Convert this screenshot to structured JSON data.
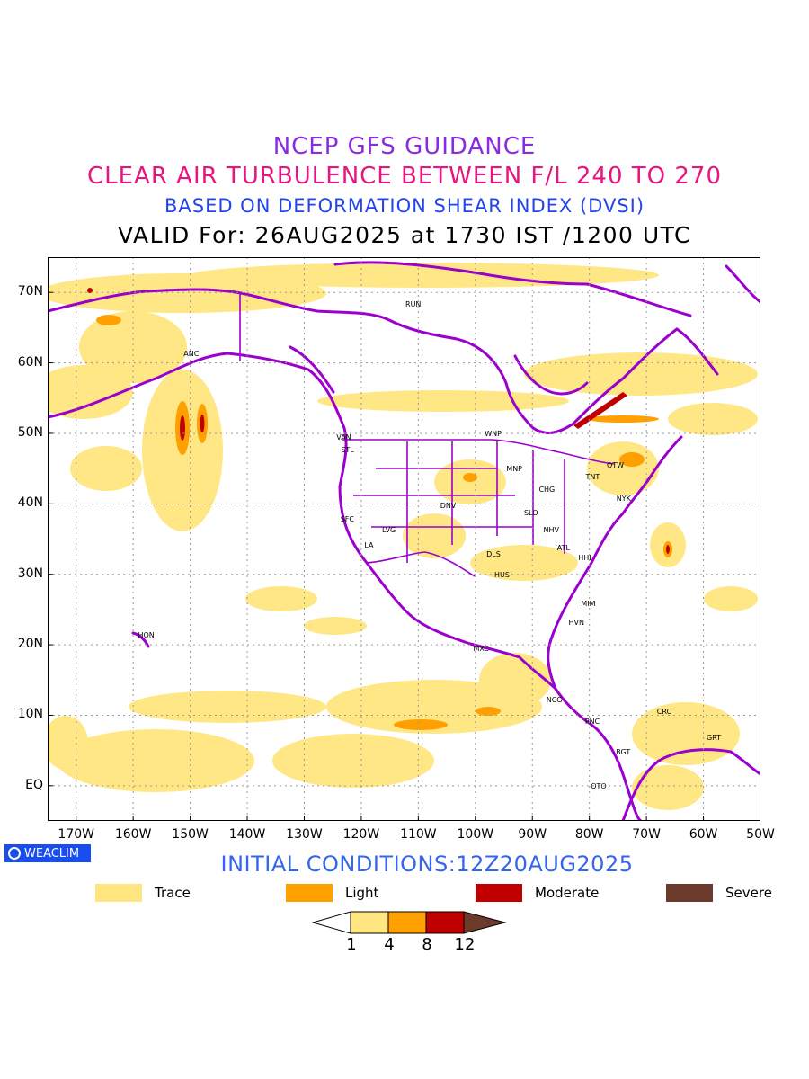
{
  "header": {
    "line1": "NCEP GFS GUIDANCE",
    "line2": "CLEAR AIR TURBULENCE BETWEEN F/L 240 TO 270",
    "line3": "BASED ON DEFORMATION SHEAR INDEX (DVSI)",
    "line4": "VALID For: 26AUG2025 at 1730 IST /1200 UTC"
  },
  "axes": {
    "x_labels": [
      "170W",
      "160W",
      "150W",
      "140W",
      "130W",
      "120W",
      "110W",
      "100W",
      "90W",
      "80W",
      "70W",
      "60W",
      "50W"
    ],
    "y_labels": [
      "70N",
      "60N",
      "50N",
      "40N",
      "30N",
      "20N",
      "10N",
      "EQ"
    ],
    "lon_range": [
      -175,
      -50
    ],
    "lat_range": [
      -5,
      75
    ]
  },
  "cities": [
    {
      "name": "ANC",
      "lon": -149.9,
      "lat": 61.2
    },
    {
      "name": "RUN",
      "lon": -111.0,
      "lat": 68.3
    },
    {
      "name": "VAN",
      "lon": -123.1,
      "lat": 49.3
    },
    {
      "name": "STL",
      "lon": -122.3,
      "lat": 47.6
    },
    {
      "name": "WNP",
      "lon": -97.1,
      "lat": 49.9
    },
    {
      "name": "MNP",
      "lon": -93.3,
      "lat": 44.9
    },
    {
      "name": "OTW",
      "lon": -75.7,
      "lat": 45.4
    },
    {
      "name": "TNT",
      "lon": -79.4,
      "lat": 43.7
    },
    {
      "name": "CHG",
      "lon": -87.6,
      "lat": 41.9
    },
    {
      "name": "NYK",
      "lon": -74.0,
      "lat": 40.7
    },
    {
      "name": "DNV",
      "lon": -104.9,
      "lat": 39.7
    },
    {
      "name": "SFC",
      "lon": -122.4,
      "lat": 37.8
    },
    {
      "name": "LVG",
      "lon": -115.1,
      "lat": 36.2
    },
    {
      "name": "SLO",
      "lon": -90.2,
      "lat": 38.6
    },
    {
      "name": "NHV",
      "lon": -86.8,
      "lat": 36.2
    },
    {
      "name": "LA",
      "lon": -118.2,
      "lat": 34.1
    },
    {
      "name": "ATL",
      "lon": -84.4,
      "lat": 33.7
    },
    {
      "name": "DLS",
      "lon": -96.8,
      "lat": 32.8
    },
    {
      "name": "HHI",
      "lon": -80.7,
      "lat": 32.2
    },
    {
      "name": "HUS",
      "lon": -95.4,
      "lat": 29.8
    },
    {
      "name": "MIM",
      "lon": -80.2,
      "lat": 25.8
    },
    {
      "name": "HVN",
      "lon": -82.4,
      "lat": 23.1
    },
    {
      "name": "HON",
      "lon": -157.9,
      "lat": 21.3
    },
    {
      "name": "MXC",
      "lon": -99.1,
      "lat": 19.4
    },
    {
      "name": "NCG",
      "lon": -86.3,
      "lat": 12.1
    },
    {
      "name": "CRC",
      "lon": -66.9,
      "lat": 10.5
    },
    {
      "name": "PNC",
      "lon": -79.5,
      "lat": 9.0
    },
    {
      "name": "GRT",
      "lon": -58.2,
      "lat": 6.8
    },
    {
      "name": "BGT",
      "lon": -74.1,
      "lat": 4.7
    },
    {
      "name": "QTO",
      "lon": -78.5,
      "lat": -0.2
    }
  ],
  "footer": {
    "logo_text": "WEACLIM",
    "initial_conditions": "INITIAL CONDITIONS:12Z20AUG2025"
  },
  "legend": [
    {
      "label": "Trace",
      "color": "#ffe680"
    },
    {
      "label": "Light",
      "color": "#ffa000"
    },
    {
      "label": "Moderate",
      "color": "#c00000"
    },
    {
      "label": "Severe",
      "color": "#6b3a2a"
    }
  ],
  "colorbar": {
    "labels": [
      "1",
      "4",
      "8",
      "12"
    ],
    "colors": [
      "#ffffff",
      "#ffe680",
      "#ffa000",
      "#c00000",
      "#6b3a2a"
    ]
  },
  "colors": {
    "coast": "#9b00cc",
    "grid": "#999999"
  }
}
